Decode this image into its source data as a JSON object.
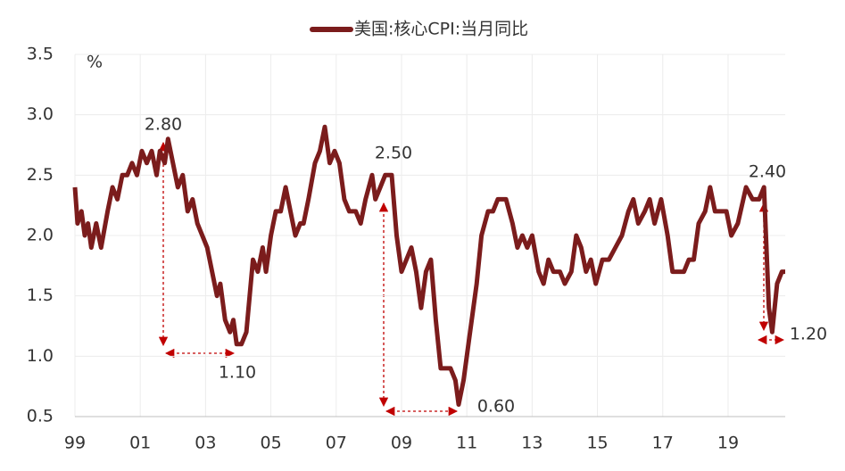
{
  "chart_data": {
    "type": "line",
    "series": [
      {
        "name": "美国:核心CPI:当月同比",
        "color": "#7b1c1c",
        "x": [
          1999.0,
          1999.08,
          1999.2,
          1999.3,
          1999.4,
          1999.5,
          1999.65,
          1999.8,
          2000.0,
          2000.15,
          2000.3,
          2000.45,
          2000.6,
          2000.75,
          2000.9,
          2001.05,
          2001.2,
          2001.35,
          2001.5,
          2001.6,
          2001.75,
          2001.85,
          2002.0,
          2002.15,
          2002.3,
          2002.45,
          2002.6,
          2002.75,
          2002.9,
          2003.05,
          2003.2,
          2003.35,
          2003.45,
          2003.6,
          2003.75,
          2003.85,
          2003.95,
          2004.1,
          2004.25,
          2004.45,
          2004.6,
          2004.75,
          2004.85,
          2005.0,
          2005.15,
          2005.3,
          2005.45,
          2005.6,
          2005.75,
          2005.9,
          2006.0,
          2006.15,
          2006.35,
          2006.5,
          2006.65,
          2006.8,
          2006.95,
          2007.1,
          2007.25,
          2007.4,
          2007.6,
          2007.75,
          2007.9,
          2008.1,
          2008.2,
          2008.35,
          2008.5,
          2008.7,
          2008.85,
          2009.0,
          2009.15,
          2009.3,
          2009.45,
          2009.6,
          2009.75,
          2009.9,
          2010.05,
          2010.2,
          2010.5,
          2010.65,
          2010.75,
          2010.9,
          2011.1,
          2011.3,
          2011.45,
          2011.65,
          2011.8,
          2011.95,
          2012.2,
          2012.4,
          2012.55,
          2012.7,
          2012.85,
          2013.0,
          2013.2,
          2013.35,
          2013.5,
          2013.65,
          2013.85,
          2014.0,
          2014.2,
          2014.35,
          2014.5,
          2014.65,
          2014.8,
          2014.95,
          2015.15,
          2015.35,
          2015.55,
          2015.75,
          2015.95,
          2016.1,
          2016.25,
          2016.45,
          2016.6,
          2016.75,
          2016.95,
          2017.15,
          2017.3,
          2017.5,
          2017.65,
          2017.8,
          2017.95,
          2018.1,
          2018.3,
          2018.45,
          2018.6,
          2018.8,
          2018.95,
          2019.1,
          2019.3,
          2019.55,
          2019.75,
          2019.95,
          2020.1,
          2020.25,
          2020.35,
          2020.5,
          2020.65,
          2020.75
        ],
        "values": [
          2.4,
          2.1,
          2.2,
          2.0,
          2.1,
          1.9,
          2.1,
          1.9,
          2.2,
          2.4,
          2.3,
          2.5,
          2.5,
          2.6,
          2.5,
          2.7,
          2.6,
          2.7,
          2.5,
          2.7,
          2.6,
          2.8,
          2.6,
          2.4,
          2.5,
          2.2,
          2.3,
          2.1,
          2.0,
          1.9,
          1.7,
          1.5,
          1.6,
          1.3,
          1.2,
          1.3,
          1.1,
          1.1,
          1.2,
          1.8,
          1.7,
          1.9,
          1.7,
          2.0,
          2.2,
          2.2,
          2.4,
          2.2,
          2.0,
          2.1,
          2.1,
          2.3,
          2.6,
          2.7,
          2.9,
          2.6,
          2.7,
          2.6,
          2.3,
          2.2,
          2.2,
          2.1,
          2.3,
          2.5,
          2.3,
          2.4,
          2.5,
          2.5,
          2.0,
          1.7,
          1.8,
          1.9,
          1.7,
          1.4,
          1.7,
          1.8,
          1.3,
          0.9,
          0.9,
          0.8,
          0.6,
          0.8,
          1.2,
          1.6,
          2.0,
          2.2,
          2.2,
          2.3,
          2.3,
          2.1,
          1.9,
          2.0,
          1.9,
          2.0,
          1.7,
          1.6,
          1.8,
          1.7,
          1.7,
          1.6,
          1.7,
          2.0,
          1.9,
          1.7,
          1.8,
          1.6,
          1.8,
          1.8,
          1.9,
          2.0,
          2.2,
          2.3,
          2.1,
          2.2,
          2.3,
          2.1,
          2.3,
          2.0,
          1.7,
          1.7,
          1.7,
          1.8,
          1.8,
          2.1,
          2.2,
          2.4,
          2.2,
          2.2,
          2.2,
          2.0,
          2.1,
          2.4,
          2.3,
          2.3,
          2.4,
          1.4,
          1.2,
          1.6,
          1.7,
          1.7
        ]
      }
    ],
    "xlim": [
      1999,
      2020.75
    ],
    "xticks": [
      {
        "value": 1999,
        "label": "99"
      },
      {
        "value": 2001,
        "label": "01"
      },
      {
        "value": 2003,
        "label": "03"
      },
      {
        "value": 2005,
        "label": "05"
      },
      {
        "value": 2007,
        "label": "07"
      },
      {
        "value": 2009,
        "label": "09"
      },
      {
        "value": 2011,
        "label": "11"
      },
      {
        "value": 2013,
        "label": "13"
      },
      {
        "value": 2015,
        "label": "15"
      },
      {
        "value": 2017,
        "label": "17"
      },
      {
        "value": 2019,
        "label": "19"
      }
    ],
    "ylim": [
      0.5,
      3.5
    ],
    "yticks": [
      0.5,
      {
        "value": 1,
        "label": "1.0"
      },
      1.5,
      {
        "value": 2,
        "label": "2.0"
      },
      2.5,
      {
        "value": 3,
        "label": "3.0"
      },
      3.5
    ],
    "y_unit": "%",
    "grid": true,
    "annotations": [
      "2.80",
      "1.10",
      "2.50",
      "0.60",
      "2.40",
      "1.20"
    ]
  }
}
